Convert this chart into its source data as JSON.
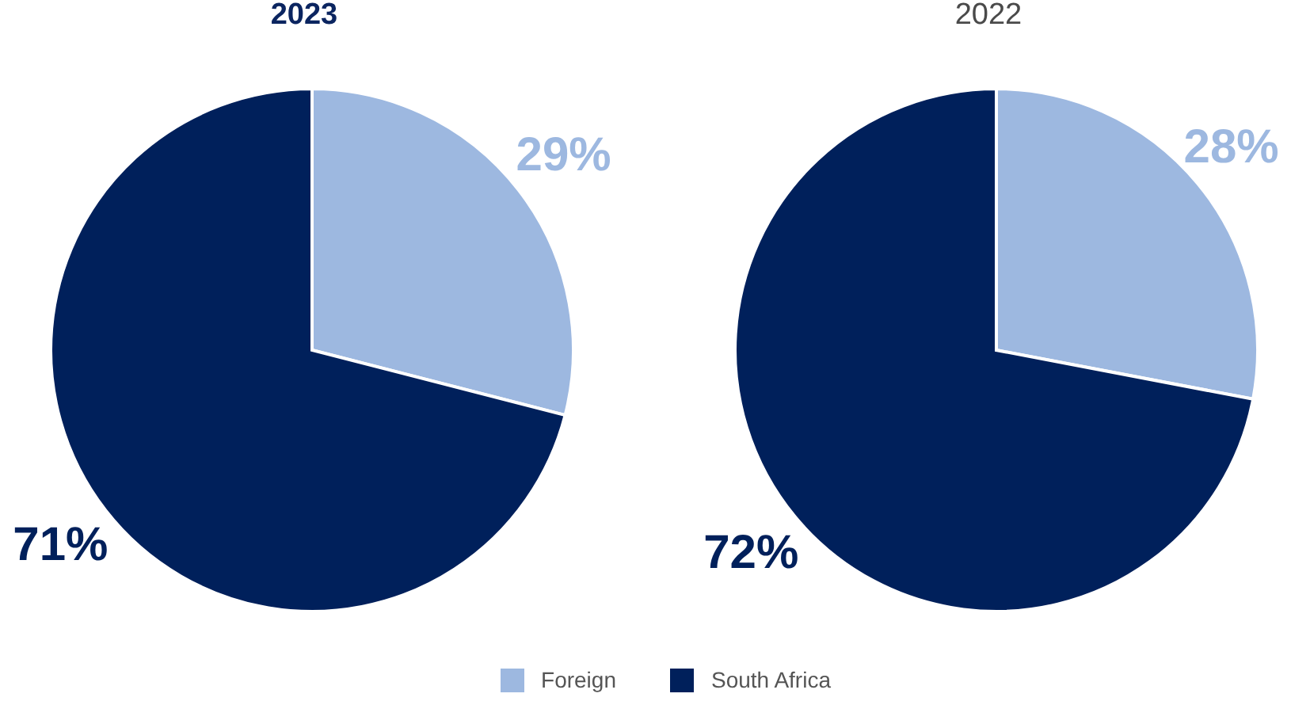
{
  "chart_data": {
    "type": "pie",
    "categories": [
      "Foreign",
      "South Africa"
    ],
    "colors": [
      "#9db8e0",
      "#00205b"
    ],
    "series": [
      {
        "name": "2023",
        "values": [
          29,
          71
        ],
        "value_labels": [
          "29%",
          "71%"
        ]
      },
      {
        "name": "2022",
        "values": [
          28,
          72
        ],
        "value_labels": [
          "28%",
          "72%"
        ]
      }
    ],
    "legend": "bottom"
  }
}
